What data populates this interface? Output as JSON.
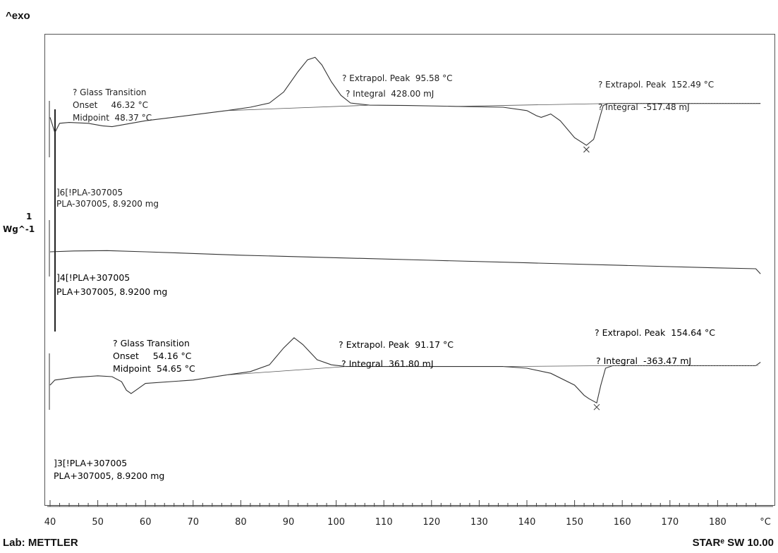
{
  "header": {
    "exo_label": "^exo"
  },
  "footer": {
    "lab": "Lab: METTLER",
    "software": "STARᵉ SW 10.00"
  },
  "y_scale": {
    "value": "1",
    "unit": "Wg^-1"
  },
  "chart_data": {
    "type": "line",
    "xlabel": "°C",
    "xlim": [
      40,
      189
    ],
    "x_ticks": [
      "40",
      "50",
      "60",
      "70",
      "80",
      "90",
      "100",
      "110",
      "120",
      "130",
      "140",
      "150",
      "160",
      "170",
      "180",
      "°C"
    ],
    "series": [
      {
        "name": "]6[!PLA-307005",
        "sample": "PLA-307005, 8.9200 mg",
        "points": [
          [
            40,
            0.9
          ],
          [
            41,
            0.0
          ],
          [
            42,
            0.55
          ],
          [
            44,
            0.6
          ],
          [
            48,
            0.55
          ],
          [
            51,
            0.4
          ],
          [
            53,
            0.35
          ],
          [
            55,
            0.45
          ],
          [
            60,
            0.7
          ],
          [
            70,
            1.05
          ],
          [
            77,
            1.3
          ],
          [
            82,
            1.5
          ],
          [
            86,
            1.75
          ],
          [
            89,
            2.4
          ],
          [
            92,
            3.6
          ],
          [
            94,
            4.3
          ],
          [
            95.58,
            4.45
          ],
          [
            97,
            4.0
          ],
          [
            99,
            3.0
          ],
          [
            101,
            2.2
          ],
          [
            103,
            1.75
          ],
          [
            107,
            1.62
          ],
          [
            115,
            1.6
          ],
          [
            125,
            1.55
          ],
          [
            135,
            1.5
          ],
          [
            140,
            1.3
          ],
          [
            142,
            1.0
          ],
          [
            143,
            0.9
          ],
          [
            145,
            1.1
          ],
          [
            147,
            0.7
          ],
          [
            150,
            -0.3
          ],
          [
            152.49,
            -0.75
          ],
          [
            154,
            -0.4
          ],
          [
            155,
            0.6
          ],
          [
            156,
            1.6
          ],
          [
            157,
            1.72
          ],
          [
            170,
            1.72
          ],
          [
            189,
            1.72
          ]
        ],
        "annotations": [
          {
            "label": "? Glass Transition",
            "lines": [
              "Onset     46.32 °C",
              "Midpoint  48.37 °C"
            ]
          },
          {
            "label": "? Extrapol. Peak",
            "value": "95.58 °C"
          },
          {
            "label": "? Integral",
            "value": "428.00 mJ"
          },
          {
            "label": "? Extrapol. Peak",
            "value": "152.49 °C"
          },
          {
            "label": "? Integral",
            "value": "-517.48 mJ"
          }
        ]
      },
      {
        "name": "]4[!PLA+307005",
        "sample": "PLA+307005, 8.9200 mg",
        "points": [
          [
            40,
            0.0
          ],
          [
            45,
            0.05
          ],
          [
            52,
            0.07
          ],
          [
            60,
            0.0
          ],
          [
            80,
            -0.2
          ],
          [
            100,
            -0.35
          ],
          [
            120,
            -0.5
          ],
          [
            140,
            -0.65
          ],
          [
            160,
            -0.8
          ],
          [
            180,
            -0.95
          ],
          [
            188,
            -1.0
          ],
          [
            189,
            -1.3
          ]
        ]
      },
      {
        "name": "]3[!PLA+307005",
        "sample": "PLA+307005, 8.9200 mg",
        "points": [
          [
            40,
            0.0
          ],
          [
            41,
            0.3
          ],
          [
            45,
            0.45
          ],
          [
            50,
            0.55
          ],
          [
            53,
            0.5
          ],
          [
            55,
            0.2
          ],
          [
            56,
            -0.3
          ],
          [
            57,
            -0.5
          ],
          [
            58,
            -0.3
          ],
          [
            60,
            0.1
          ],
          [
            70,
            0.3
          ],
          [
            77,
            0.6
          ],
          [
            82,
            0.8
          ],
          [
            86,
            1.2
          ],
          [
            89,
            2.2
          ],
          [
            91.17,
            2.8
          ],
          [
            93,
            2.4
          ],
          [
            96,
            1.5
          ],
          [
            99,
            1.2
          ],
          [
            102,
            1.1
          ],
          [
            110,
            1.1
          ],
          [
            120,
            1.1
          ],
          [
            130,
            1.1
          ],
          [
            135,
            1.1
          ],
          [
            140,
            1.0
          ],
          [
            145,
            0.7
          ],
          [
            150,
            0.0
          ],
          [
            152,
            -0.6
          ],
          [
            153,
            -0.8
          ],
          [
            154.64,
            -1.05
          ],
          [
            155.5,
            0.0
          ],
          [
            156.5,
            1.0
          ],
          [
            158,
            1.15
          ],
          [
            170,
            1.15
          ],
          [
            188,
            1.15
          ],
          [
            189,
            1.35
          ]
        ],
        "annotations": [
          {
            "label": "? Glass Transition",
            "lines": [
              "Onset     54.16 °C",
              "Midpoint  54.65 °C"
            ]
          },
          {
            "label": "? Extrapol. Peak",
            "value": "91.17 °C"
          },
          {
            "label": "? Integral",
            "value": "361.80 mJ"
          },
          {
            "label": "? Extrapol. Peak",
            "value": "154.64 °C"
          },
          {
            "label": "? Integral",
            "value": "-363.47 mJ"
          }
        ]
      }
    ]
  }
}
